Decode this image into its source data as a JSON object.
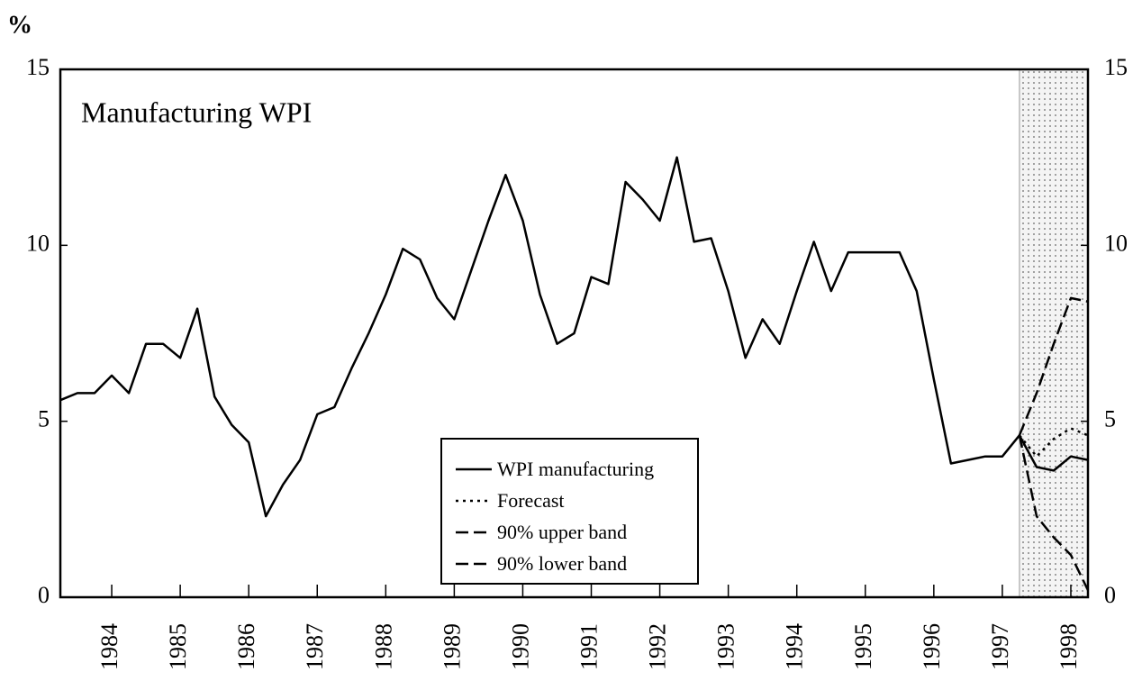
{
  "chart_data": {
    "type": "line",
    "title": "Manufacturing WPI",
    "ylabel": "%",
    "x": [
      1983.25,
      1983.5,
      1983.75,
      1984,
      1984.25,
      1984.5,
      1984.75,
      1985,
      1985.25,
      1985.5,
      1985.75,
      1986,
      1986.25,
      1986.5,
      1986.75,
      1987,
      1987.25,
      1987.5,
      1987.75,
      1988,
      1988.25,
      1988.5,
      1988.75,
      1989,
      1989.25,
      1989.5,
      1989.75,
      1990,
      1990.25,
      1990.5,
      1990.75,
      1991,
      1991.25,
      1991.5,
      1991.75,
      1992,
      1992.25,
      1992.5,
      1992.75,
      1993,
      1993.25,
      1993.5,
      1993.75,
      1994,
      1994.25,
      1994.5,
      1994.75,
      1995,
      1995.25,
      1995.5,
      1995.75,
      1996,
      1996.25,
      1996.5,
      1996.75,
      1997,
      1997.25,
      1997.5,
      1997.75,
      1998,
      1998.25
    ],
    "xlim": [
      1983.25,
      1998.25
    ],
    "xticks": [
      {
        "value": 1984,
        "label": "1984"
      },
      {
        "value": 1985,
        "label": "1985"
      },
      {
        "value": 1986,
        "label": "1986"
      },
      {
        "value": 1987,
        "label": "1987"
      },
      {
        "value": 1988,
        "label": "1988"
      },
      {
        "value": 1989,
        "label": "1989"
      },
      {
        "value": 1990,
        "label": "1990"
      },
      {
        "value": 1991,
        "label": "1991"
      },
      {
        "value": 1992,
        "label": "1992"
      },
      {
        "value": 1993,
        "label": "1993"
      },
      {
        "value": 1994,
        "label": "1994"
      },
      {
        "value": 1995,
        "label": "1995"
      },
      {
        "value": 1996,
        "label": "1996"
      },
      {
        "value": 1997,
        "label": "1997"
      },
      {
        "value": 1998,
        "label": "1998"
      }
    ],
    "ylim": [
      0,
      15
    ],
    "yticks": [
      0,
      5,
      10,
      15
    ],
    "y2lim": [
      0,
      15
    ],
    "y2ticks": [
      0,
      5,
      10,
      15
    ],
    "shaded_region": [
      1997.25,
      1998.25
    ],
    "series": [
      {
        "name": "WPI manufacturing",
        "color": "#000000",
        "dash": "solid",
        "values": [
          5.6,
          5.8,
          5.8,
          6.3,
          5.8,
          7.2,
          7.2,
          6.8,
          8.2,
          5.7,
          4.9,
          4.4,
          2.3,
          3.2,
          3.9,
          5.2,
          5.4,
          6.5,
          7.5,
          8.6,
          9.9,
          9.6,
          8.5,
          7.9,
          9.3,
          10.7,
          12.0,
          10.7,
          8.6,
          7.2,
          7.5,
          9.1,
          8.9,
          11.8,
          11.3,
          10.7,
          12.5,
          10.1,
          10.2,
          8.7,
          6.8,
          7.9,
          7.2,
          8.7,
          10.1,
          8.7,
          9.8,
          9.8,
          9.8,
          9.8,
          8.7,
          6.2,
          3.8,
          3.9,
          4.0,
          4.0,
          4.6,
          3.7,
          3.6,
          4.0,
          3.9
        ]
      },
      {
        "name": "Forecast",
        "color": "#000000",
        "dash": "dotted",
        "values": [
          null,
          null,
          null,
          null,
          null,
          null,
          null,
          null,
          null,
          null,
          null,
          null,
          null,
          null,
          null,
          null,
          null,
          null,
          null,
          null,
          null,
          null,
          null,
          null,
          null,
          null,
          null,
          null,
          null,
          null,
          null,
          null,
          null,
          null,
          null,
          null,
          null,
          null,
          null,
          null,
          null,
          null,
          null,
          null,
          null,
          null,
          null,
          null,
          null,
          null,
          null,
          null,
          null,
          null,
          null,
          null,
          4.6,
          4.0,
          4.5,
          4.8,
          4.6
        ]
      },
      {
        "name": "90% upper band",
        "color": "#000000",
        "dash": "dashed",
        "values": [
          null,
          null,
          null,
          null,
          null,
          null,
          null,
          null,
          null,
          null,
          null,
          null,
          null,
          null,
          null,
          null,
          null,
          null,
          null,
          null,
          null,
          null,
          null,
          null,
          null,
          null,
          null,
          null,
          null,
          null,
          null,
          null,
          null,
          null,
          null,
          null,
          null,
          null,
          null,
          null,
          null,
          null,
          null,
          null,
          null,
          null,
          null,
          null,
          null,
          null,
          null,
          null,
          null,
          null,
          null,
          null,
          4.6,
          5.8,
          7.2,
          8.5,
          8.4
        ]
      },
      {
        "name": "90% lower band",
        "color": "#000000",
        "dash": "dashed",
        "values": [
          null,
          null,
          null,
          null,
          null,
          null,
          null,
          null,
          null,
          null,
          null,
          null,
          null,
          null,
          null,
          null,
          null,
          null,
          null,
          null,
          null,
          null,
          null,
          null,
          null,
          null,
          null,
          null,
          null,
          null,
          null,
          null,
          null,
          null,
          null,
          null,
          null,
          null,
          null,
          null,
          null,
          null,
          null,
          null,
          null,
          null,
          null,
          null,
          null,
          null,
          null,
          null,
          null,
          null,
          null,
          null,
          4.6,
          2.3,
          1.7,
          1.2,
          0.2
        ]
      }
    ]
  }
}
